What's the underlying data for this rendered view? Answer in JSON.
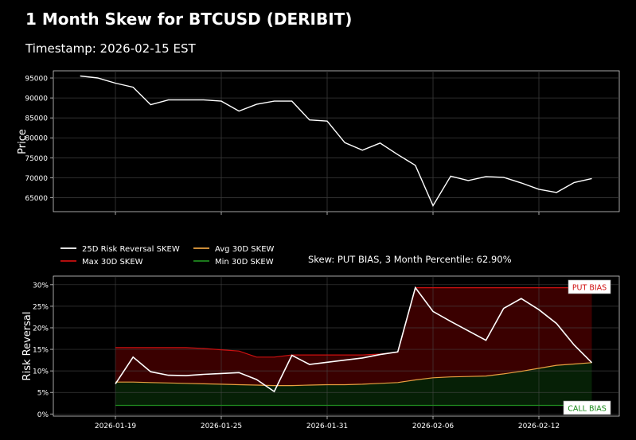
{
  "header": {
    "title": "1 Month Skew for BTCUSD (DERIBIT)",
    "subtitle": "Timestamp: 2026-02-15 EST"
  },
  "chart_data": [
    {
      "type": "line",
      "ylabel": "Price",
      "yticks": [
        65000,
        70000,
        75000,
        80000,
        85000,
        90000,
        95000
      ],
      "ylim": [
        61500,
        96800
      ],
      "xlim_dates": [
        "2026-01-16",
        "2026-02-15"
      ],
      "grid": true,
      "series": [
        {
          "color": "#ffffff",
          "x": [
            "2026-01-17",
            "2026-01-18",
            "2026-01-19",
            "2026-01-20",
            "2026-01-21",
            "2026-01-22",
            "2026-01-23",
            "2026-01-24",
            "2026-01-25",
            "2026-01-26",
            "2026-01-27",
            "2026-01-28",
            "2026-01-29",
            "2026-01-30",
            "2026-01-31",
            "2026-02-01",
            "2026-02-02",
            "2026-02-03",
            "2026-02-04",
            "2026-02-05",
            "2026-02-06",
            "2026-02-07",
            "2026-02-08",
            "2026-02-09",
            "2026-02-10",
            "2026-02-11",
            "2026-02-12",
            "2026-02-13",
            "2026-02-14",
            "2026-02-15"
          ],
          "values": [
            95500,
            95000,
            93700,
            92700,
            88300,
            89500,
            89500,
            89500,
            89200,
            86700,
            88400,
            89200,
            89200,
            84500,
            84200,
            78800,
            76900,
            78700,
            75800,
            73100,
            63000,
            70400,
            69300,
            70300,
            70100,
            68700,
            67100,
            66300,
            68800,
            69800
          ]
        }
      ]
    },
    {
      "type": "area",
      "ylabel": "Risk Reversal",
      "yticks": [
        "0%",
        "5%",
        "10%",
        "15%",
        "20%",
        "25%",
        "30%"
      ],
      "ylim": [
        -0.5,
        32
      ],
      "x_ticks": [
        "2026-01-19",
        "2026-01-25",
        "2026-01-31",
        "2026-02-06",
        "2026-02-12"
      ],
      "grid": true,
      "legend_position": "top-left",
      "annotation": "Skew: PUT BIAS, 3 Month Percentile: 62.90%",
      "band_labels": {
        "upper": "PUT BIAS",
        "lower": "CALL BIAS"
      },
      "legend": [
        {
          "label": "25D Risk Reversal SKEW",
          "color": "#ffffff"
        },
        {
          "label": "Avg 30D SKEW",
          "color": "#e8a040"
        },
        {
          "label": "Max 30D SKEW",
          "color": "#cc1111"
        },
        {
          "label": "Min 30D SKEW",
          "color": "#1f8a1f"
        }
      ],
      "x": [
        "2026-01-19",
        "2026-01-20",
        "2026-01-21",
        "2026-01-22",
        "2026-01-23",
        "2026-01-24",
        "2026-01-25",
        "2026-01-26",
        "2026-01-27",
        "2026-01-28",
        "2026-01-29",
        "2026-01-30",
        "2026-01-31",
        "2026-02-01",
        "2026-02-02",
        "2026-02-03",
        "2026-02-04",
        "2026-02-05",
        "2026-02-06",
        "2026-02-07",
        "2026-02-08",
        "2026-02-09",
        "2026-02-10",
        "2026-02-11",
        "2026-02-12",
        "2026-02-13",
        "2026-02-14",
        "2026-02-15"
      ],
      "series": [
        {
          "name": "25D Risk Reversal SKEW",
          "color": "#ffffff",
          "values": [
            7.0,
            13.2,
            9.8,
            9.0,
            8.9,
            9.2,
            9.4,
            9.6,
            8.0,
            5.2,
            13.6,
            11.5,
            12.0,
            12.5,
            13.0,
            13.8,
            14.4,
            29.3,
            23.8,
            21.5,
            19.3,
            17.1,
            24.5,
            26.8,
            24.2,
            21.0,
            16.0,
            11.9
          ]
        },
        {
          "name": "Max 30D SKEW",
          "color": "#cc1111",
          "values": [
            15.4,
            15.4,
            15.4,
            15.4,
            15.4,
            15.2,
            14.9,
            14.6,
            13.2,
            13.2,
            13.7,
            13.7,
            13.7,
            13.7,
            13.7,
            13.9,
            14.4,
            29.3,
            29.3,
            29.3,
            29.3,
            29.3,
            29.3,
            29.3,
            29.3,
            29.3,
            29.3,
            29.3
          ]
        },
        {
          "name": "Avg 30D SKEW",
          "color": "#e8a040",
          "values": [
            7.4,
            7.4,
            7.3,
            7.2,
            7.1,
            7.0,
            6.9,
            6.8,
            6.7,
            6.6,
            6.6,
            6.7,
            6.8,
            6.8,
            6.9,
            7.1,
            7.3,
            7.9,
            8.4,
            8.6,
            8.7,
            8.8,
            9.3,
            9.9,
            10.6,
            11.3,
            11.6,
            11.9
          ]
        },
        {
          "name": "Min 30D SKEW",
          "color": "#1f8a1f",
          "values": [
            2.0,
            2.0,
            2.0,
            2.0,
            2.0,
            2.0,
            2.0,
            2.0,
            2.0,
            2.0,
            2.0,
            2.0,
            2.0,
            2.0,
            2.0,
            2.0,
            2.0,
            2.0,
            2.0,
            2.0,
            2.0,
            2.0,
            2.0,
            2.0,
            2.0,
            2.0,
            2.0,
            2.0
          ]
        }
      ]
    }
  ]
}
